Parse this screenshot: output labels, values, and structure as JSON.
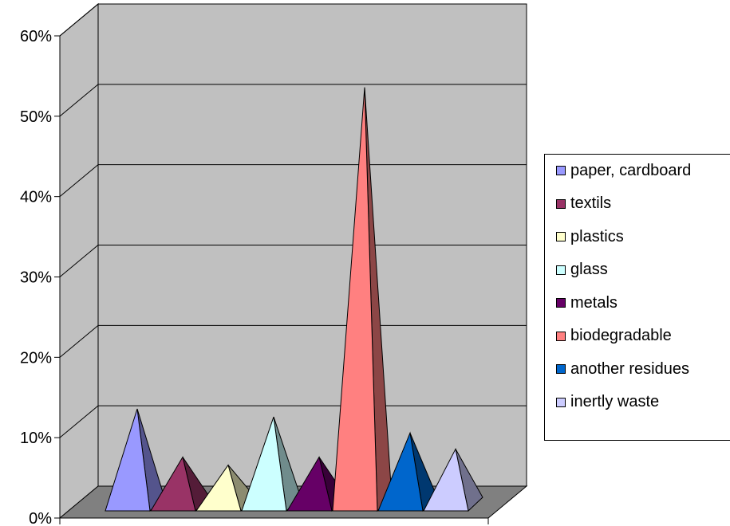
{
  "chart_data": {
    "type": "bar",
    "style": "3d-pyramid",
    "categories": [
      "paper, cardboard",
      "textils",
      "plastics",
      "glass",
      "metals",
      "biodegradable",
      "another residues",
      "inertly waste"
    ],
    "values": [
      12,
      6,
      5,
      11,
      6,
      52,
      9,
      7
    ],
    "colors": [
      "#9999ff",
      "#993366",
      "#ffffcc",
      "#ccffff",
      "#660066",
      "#ff8080",
      "#0066cc",
      "#ccccff"
    ],
    "ylim": [
      0,
      60
    ],
    "yticks": [
      "0%",
      "10%",
      "20%",
      "30%",
      "40%",
      "50%",
      "60%"
    ],
    "grid": true,
    "wall_color": "#c0c0c0",
    "floor_color": "#808080",
    "legend_position": "right",
    "title": "",
    "xlabel": "",
    "ylabel": ""
  }
}
